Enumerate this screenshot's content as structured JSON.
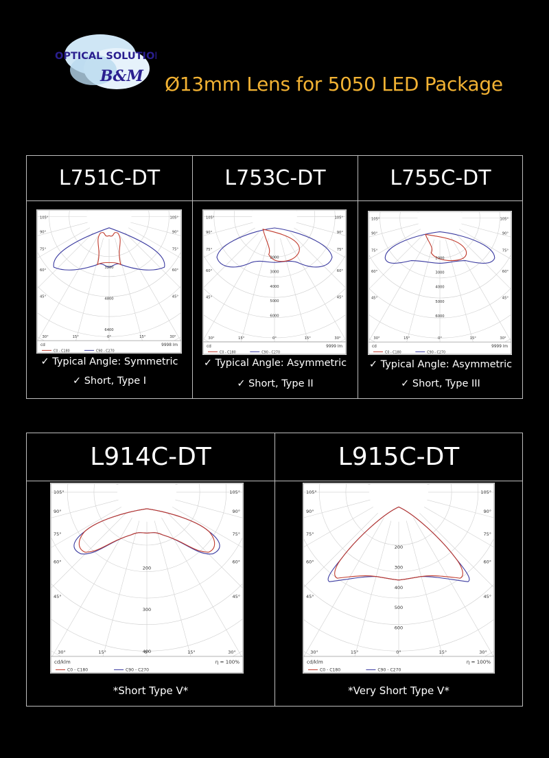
{
  "logo": {
    "line1": "OPTICAL SOLUTION",
    "line2": "B&M"
  },
  "title": "Ø13mm Lens for 5050 LED Package",
  "top_products": [
    {
      "name": "L751C-DT",
      "feature1": "✓ Typical Angle: Symmetric",
      "feature2": "✓ Short, Type I",
      "plot": {
        "unit": "cd",
        "lumens": "9998 lm",
        "ticks": [
          "3200",
          "4800",
          "6400"
        ],
        "legend1": "C0 - C180",
        "legend2": "C90 - C270"
      }
    },
    {
      "name": "L753C-DT",
      "feature1": "✓ Typical Angle: Asymmetric",
      "feature2": "✓ Short, Type II",
      "plot": {
        "unit": "cd",
        "lumens": "9999 lm",
        "ticks": [
          "2000",
          "3000",
          "4000",
          "5000",
          "6000"
        ],
        "legend1": "C0 - C180",
        "legend2": "C90 - C270"
      }
    },
    {
      "name": "L755C-DT",
      "feature1": "✓ Typical Angle: Asymmetric",
      "feature2": "✓ Short, Type III",
      "plot": {
        "unit": "cd",
        "lumens": "9999 lm",
        "ticks": [
          "2000",
          "3000",
          "4000",
          "5000",
          "6000"
        ],
        "legend1": "C0 - C180",
        "legend2": "C90 - C270"
      }
    }
  ],
  "bottom_products": [
    {
      "name": "L914C-DT",
      "caption": "*Short Type V*",
      "plot": {
        "unit": "cd/klm",
        "lumens": "η = 100%",
        "ticks": [
          "200",
          "300",
          "400"
        ],
        "legend1": "C0 - C180",
        "legend2": "C90 - C270"
      }
    },
    {
      "name": "L915C-DT",
      "caption": "*Very Short Type V*",
      "plot": {
        "unit": "cd/klm",
        "lumens": "η = 100%",
        "ticks": [
          "200",
          "300",
          "400",
          "500",
          "600"
        ],
        "legend1": "C0 - C180",
        "legend2": "C90 - C270"
      }
    }
  ],
  "angle_labels": {
    "a105": "105°",
    "a90": "90°",
    "a75": "75°",
    "a60": "60°",
    "a45": "45°",
    "a30": "30°",
    "a15": "15°",
    "a0": "0°"
  },
  "colors": {
    "title": "#f2b233",
    "series_c0": "#c0392b",
    "series_c90": "#3a3aa0",
    "border": "#bfbfbf"
  }
}
